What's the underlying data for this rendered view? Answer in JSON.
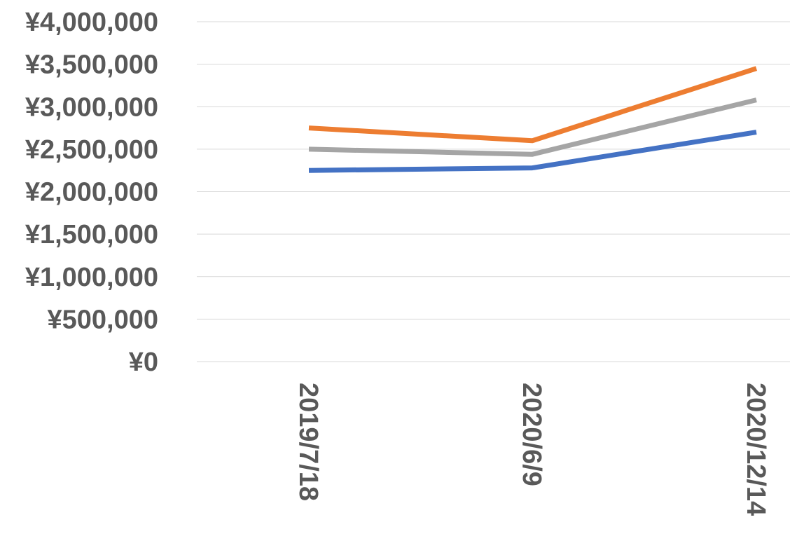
{
  "chart_data": {
    "type": "line",
    "x": [
      "2019/7/18",
      "2020/6/9",
      "2020/12/14"
    ],
    "ylim": [
      0,
      4000000
    ],
    "yticks": [
      0,
      500000,
      1000000,
      1500000,
      2000000,
      2500000,
      3000000,
      3500000,
      4000000
    ],
    "ytick_labels": [
      "¥0",
      "¥500,000",
      "¥1,000,000",
      "¥1,500,000",
      "¥2,000,000",
      "¥2,500,000",
      "¥3,000,000",
      "¥3,500,000",
      "¥4,000,000"
    ],
    "grid": true,
    "series": [
      {
        "color": "#4472c4",
        "values": [
          2250000,
          2280000,
          2700000
        ]
      },
      {
        "color": "#ed7d31",
        "values": [
          2750000,
          2600000,
          3450000
        ]
      },
      {
        "color": "#a5a5a5",
        "values": [
          2500000,
          2440000,
          3080000
        ]
      }
    ]
  }
}
